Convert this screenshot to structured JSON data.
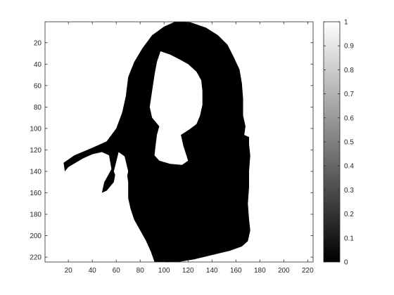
{
  "chart_data": {
    "type": "heatmap",
    "description_kind": "binary image matrix rendered with grayscale colormap",
    "colormap": "gray",
    "x_range": [
      0.5,
      224.5
    ],
    "y_range": [
      0.5,
      224.5
    ],
    "y_direction": "reversed",
    "x_ticks": [
      20,
      40,
      60,
      80,
      100,
      120,
      140,
      160,
      180,
      200,
      220
    ],
    "y_ticks": [
      20,
      40,
      60,
      80,
      100,
      120,
      140,
      160,
      180,
      200,
      220
    ],
    "colorbar": {
      "range": [
        0,
        1
      ],
      "ticks": [
        0,
        0.1,
        0.2,
        0.3,
        0.4,
        0.5,
        0.6,
        0.7,
        0.8,
        0.9,
        1
      ],
      "location": "right"
    },
    "value_scheme": "1 = white background, 0 = black figure",
    "regions": {
      "dark": [
        {
          "name": "hair-and-body",
          "value": 0,
          "points": [
            [
              110,
              0
            ],
            [
              122,
              1
            ],
            [
              135,
              6
            ],
            [
              145,
              13
            ],
            [
              153,
              22
            ],
            [
              158,
              33
            ],
            [
              163,
              45
            ],
            [
              165,
              58
            ],
            [
              166,
              72
            ],
            [
              166,
              88
            ],
            [
              168,
              98
            ],
            [
              167,
              106
            ],
            [
              171,
              108
            ],
            [
              171,
              115
            ],
            [
              172,
              125
            ],
            [
              171,
              140
            ],
            [
              171,
              155
            ],
            [
              170,
              170
            ],
            [
              171,
              185
            ],
            [
              172,
              195
            ],
            [
              170,
              205
            ],
            [
              165,
              210
            ],
            [
              155,
              214
            ],
            [
              140,
              218
            ],
            [
              125,
              222
            ],
            [
              112,
              224.5
            ],
            [
              92,
              224.5
            ],
            [
              89,
              215
            ],
            [
              85,
              205
            ],
            [
              80,
              195
            ],
            [
              75,
              185
            ],
            [
              72,
              175
            ],
            [
              70,
              165
            ],
            [
              70,
              150
            ],
            [
              68,
              135
            ],
            [
              64,
              125
            ],
            [
              60,
              138
            ],
            [
              58,
              150
            ],
            [
              52,
              158
            ],
            [
              48,
              160
            ],
            [
              50,
              150
            ],
            [
              56,
              138
            ],
            [
              54,
              125
            ],
            [
              48,
              122
            ],
            [
              40,
              124
            ],
            [
              32,
              128
            ],
            [
              20,
              136
            ],
            [
              17,
              140
            ],
            [
              16,
              132
            ],
            [
              25,
              125
            ],
            [
              40,
              118
            ],
            [
              52,
              112
            ],
            [
              60,
              100
            ],
            [
              65,
              85
            ],
            [
              68,
              70
            ],
            [
              70,
              52
            ],
            [
              75,
              38
            ],
            [
              82,
              25
            ],
            [
              90,
              13
            ],
            [
              100,
              5
            ]
          ]
        }
      ],
      "light": [
        {
          "name": "face-and-neck",
          "value": 1,
          "points": [
            [
              97,
              28
            ],
            [
              105,
              31
            ],
            [
              112,
              35
            ],
            [
              120,
              40
            ],
            [
              127,
              47
            ],
            [
              131,
              55
            ],
            [
              132,
              65
            ],
            [
              132,
              78
            ],
            [
              130,
              88
            ],
            [
              127,
              96
            ],
            [
              121,
              101
            ],
            [
              114,
              106
            ],
            [
              116,
              116
            ],
            [
              118,
              123
            ],
            [
              120,
              130
            ],
            [
              115,
              134
            ],
            [
              105,
              133
            ],
            [
              96,
              130
            ],
            [
              92,
              125
            ],
            [
              93,
              115
            ],
            [
              94,
              106
            ],
            [
              96,
              98
            ],
            [
              90,
              90
            ],
            [
              88,
              80
            ],
            [
              90,
              65
            ],
            [
              92,
              50
            ],
            [
              94,
              38
            ]
          ]
        },
        {
          "name": "hair-gap",
          "value": 1,
          "points": [
            [
              62,
              122
            ],
            [
              67,
              126
            ],
            [
              70,
              140
            ],
            [
              68,
              150
            ],
            [
              62,
              152
            ],
            [
              58,
              140
            ]
          ]
        }
      ]
    }
  },
  "colors": {
    "background": "#ffffff",
    "axis": "#262626",
    "dark": "#000000",
    "light": "#ffffff"
  }
}
